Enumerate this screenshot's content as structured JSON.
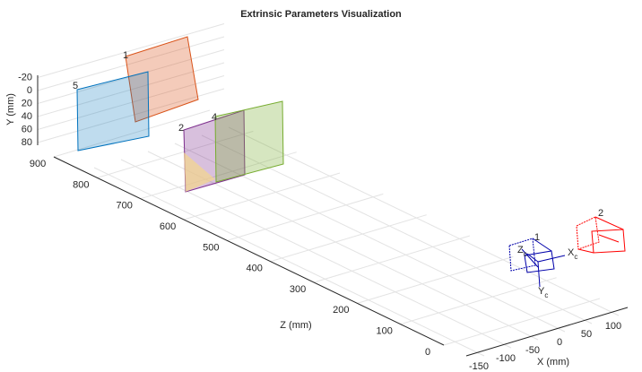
{
  "chart_data": {
    "type": "extrinsics",
    "title": "Extrinsic Parameters Visualization",
    "xlabel": "X (mm)",
    "ylabel": "Y (mm)",
    "zlabel": "Z (mm)",
    "xticks": [
      -150,
      -100,
      -50,
      0,
      50,
      100
    ],
    "yticks": [
      -20,
      0,
      20,
      40,
      60,
      80
    ],
    "zticks": [
      0,
      100,
      200,
      300,
      400,
      500,
      600,
      700,
      800,
      900
    ],
    "grid": true,
    "planes": [
      {
        "label": "5",
        "color": "#0072bd"
      },
      {
        "label": "1",
        "color": "#d95319"
      },
      {
        "label": "2",
        "color": "#7e2f8e"
      },
      {
        "label": "4",
        "color": "#77ac30"
      }
    ],
    "cameras": [
      {
        "label": "1",
        "color": "#0000aa"
      },
      {
        "label": "2",
        "color": "#ff0000"
      }
    ],
    "camera_axes": {
      "x": "X",
      "y": "Y",
      "z": "Z",
      "sub": "c"
    }
  }
}
